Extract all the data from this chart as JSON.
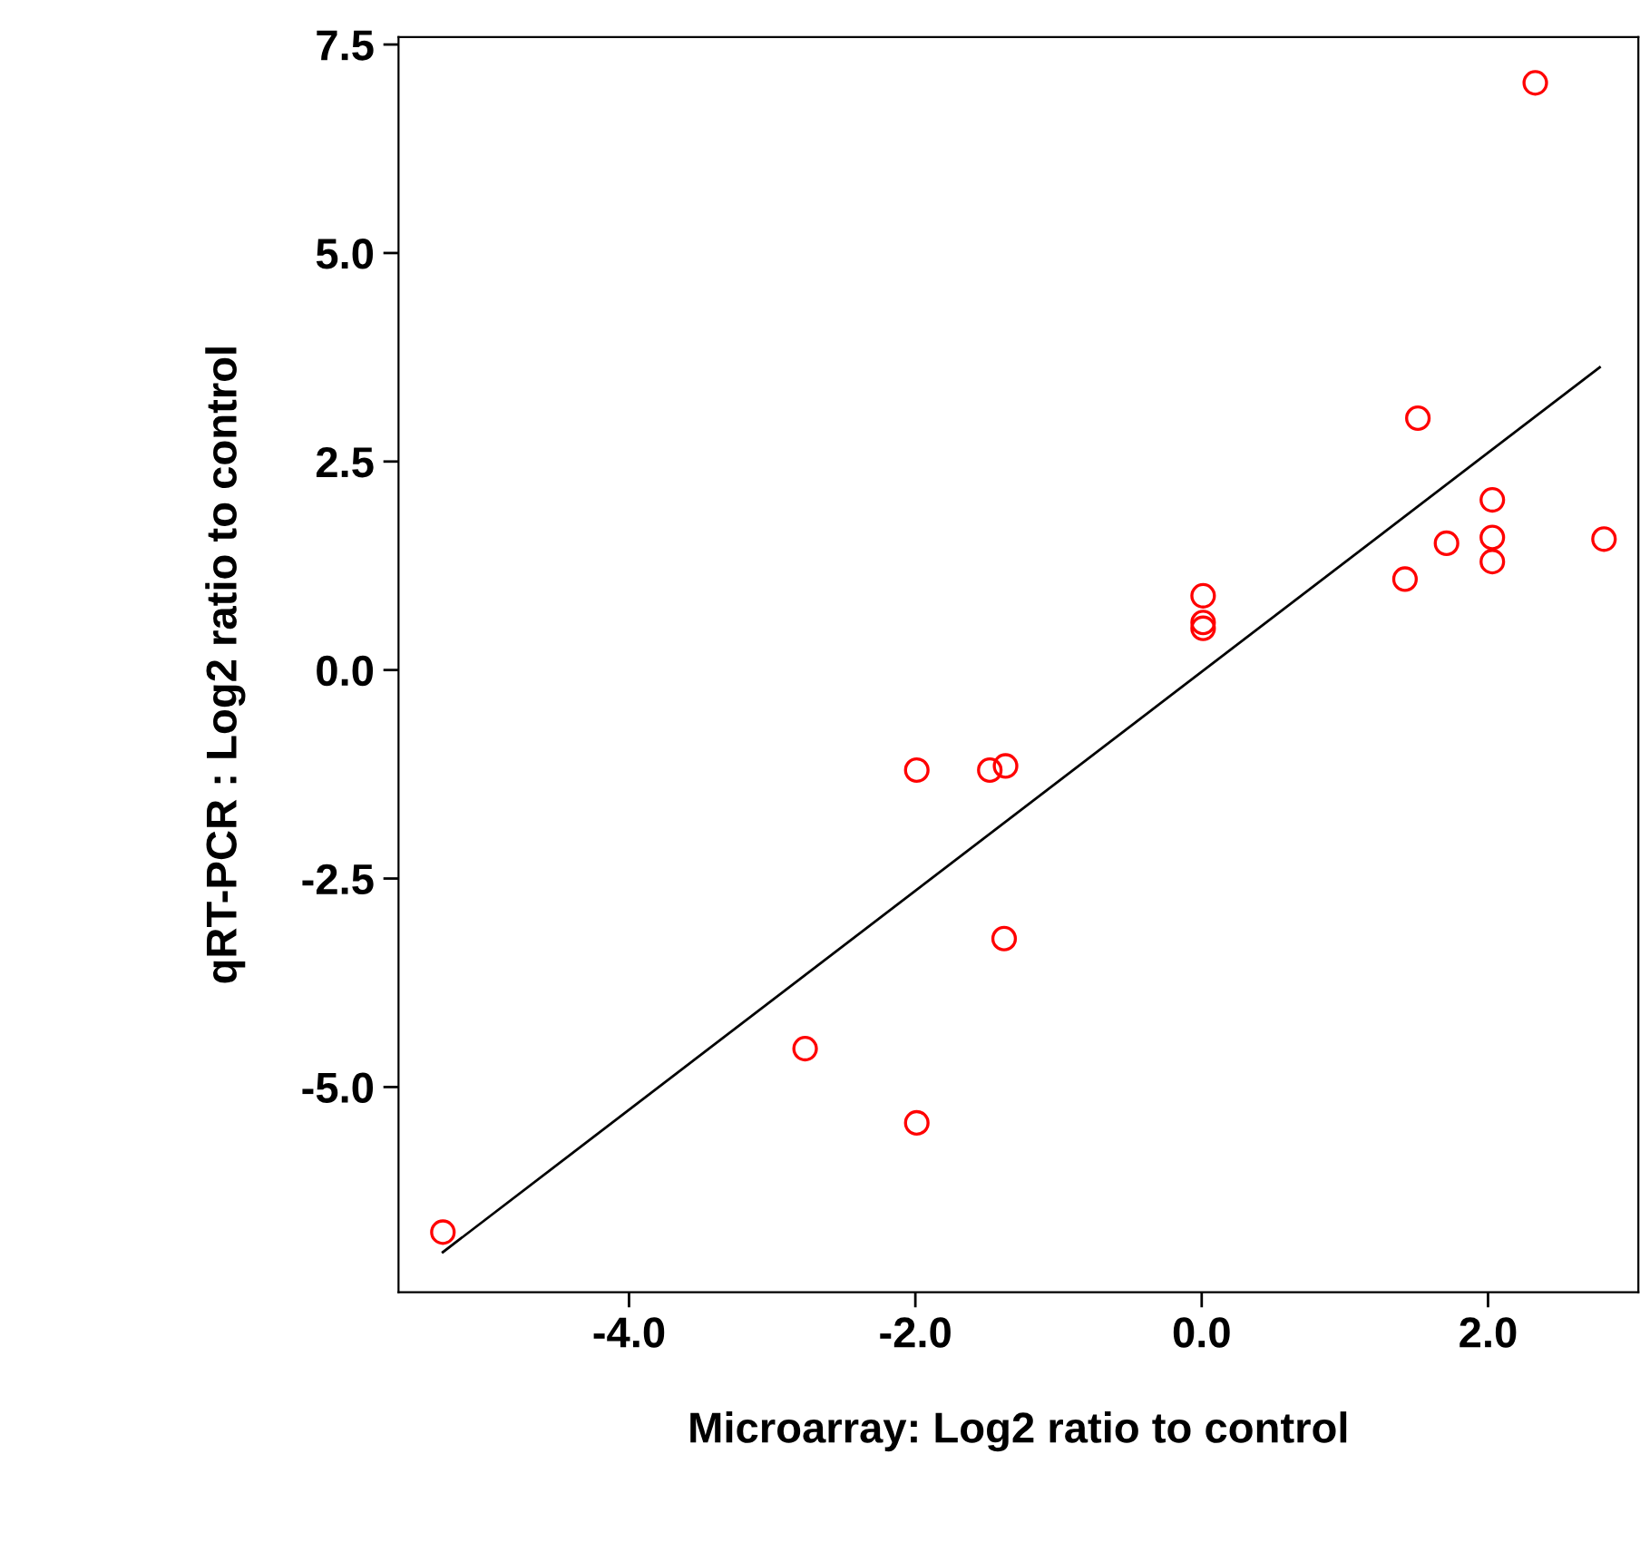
{
  "chart_data": {
    "type": "scatter",
    "xlabel": "Microarray: Log2 ratio to control",
    "ylabel": "qRT-PCR : Log2 ratio to control",
    "series": [
      {
        "color": "#ff0000",
        "marker": "circle",
        "x": [
          -5.3,
          -2.77,
          -1.99,
          -1.99,
          -1.48,
          -1.37,
          -1.38,
          0.01,
          0.01,
          0.01,
          1.42,
          1.51,
          1.71,
          2.03,
          2.03,
          2.03,
          2.33,
          2.81
        ],
        "values": [
          -6.74,
          -4.54,
          -5.43,
          -1.2,
          -1.2,
          -1.15,
          -3.22,
          0.89,
          0.57,
          0.5,
          1.09,
          3.02,
          1.52,
          2.04,
          1.59,
          1.3,
          7.04,
          1.57
        ]
      },
      {
        "type": "line",
        "color": "#000000",
        "x": [
          -5.3,
          2.78
        ],
        "values": [
          -6.98,
          3.63
        ]
      }
    ],
    "xlim": [
      -5.61,
      3.05
    ],
    "ylim": [
      -7.46,
      7.59
    ],
    "xticks": [
      {
        "value": -4,
        "label": "-4.0"
      },
      {
        "value": -2,
        "label": "-2.0"
      },
      {
        "value": 0,
        "label": "0.0"
      },
      {
        "value": 2,
        "label": "2.0"
      }
    ],
    "yticks": [
      {
        "value": -5,
        "label": "-5.0"
      },
      {
        "value": -2.5,
        "label": "-2.5"
      },
      {
        "value": 0,
        "label": "0.0"
      },
      {
        "value": 2.5,
        "label": "2.5"
      },
      {
        "value": 5,
        "label": "5.0"
      },
      {
        "value": 7.5,
        "label": "7.5"
      }
    ],
    "grid": false,
    "legend": false
  }
}
